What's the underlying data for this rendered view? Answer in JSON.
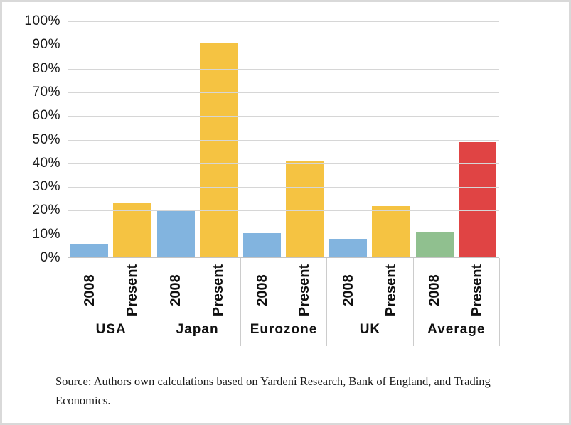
{
  "frame": {
    "background": "#ffffff",
    "border_color": "#d9d9d9"
  },
  "chart_data": {
    "type": "bar",
    "title": "",
    "categories": [
      "USA",
      "Japan",
      "Eurozone",
      "UK",
      "Average"
    ],
    "series": [
      {
        "name": "2008",
        "values": [
          6,
          20,
          10.5,
          8,
          11
        ]
      },
      {
        "name": "Present",
        "values": [
          23.5,
          91,
          41,
          22,
          49
        ]
      }
    ],
    "bar_colors": [
      [
        "#82b4df",
        "#f5c342"
      ],
      [
        "#82b4df",
        "#f5c342"
      ],
      [
        "#82b4df",
        "#f5c342"
      ],
      [
        "#82b4df",
        "#f5c342"
      ],
      [
        "#90c08f",
        "#e04444"
      ]
    ],
    "ylim": [
      0,
      100
    ],
    "ytick_step": 10,
    "yticks": [
      "0%",
      "10%",
      "20%",
      "30%",
      "40%",
      "50%",
      "60%",
      "70%",
      "80%",
      "90%",
      "100%"
    ],
    "xlabel": "",
    "ylabel": "",
    "grid": "horizontal",
    "gridline_color": "#d6d6d6",
    "axis_color": "#c4c4c4",
    "legend_position": "none"
  },
  "footer": {
    "source_note": "Source: Authors own calculations based on Yardeni Research, Bank of England, and Trading Economics."
  }
}
